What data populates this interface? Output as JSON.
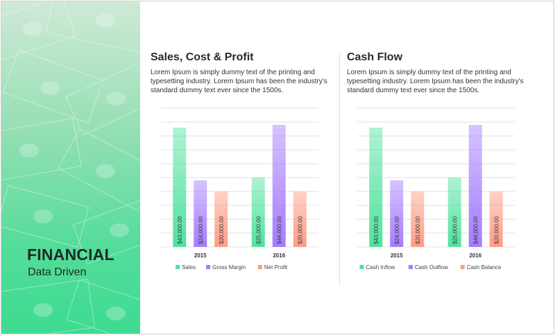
{
  "sidebar": {
    "title": "FINANCIAL",
    "subtitle": "Data Driven"
  },
  "colors": {
    "series_1": "#4fe39e",
    "series_2": "#a57bff",
    "series_3": "#ff9c84",
    "grid": "#e0e0e0"
  },
  "panels": [
    {
      "title": "Sales, Cost & Profit",
      "description": "Lorem Ipsum is simply dummy text of the printing and typesetting industry. Lorem Ipsum has been the industry's standard dummy text ever since the 1500s."
    },
    {
      "title": "Cash Flow",
      "description": "Lorem Ipsum is simply dummy text of the printing and typesetting industry. Lorem Ipsum has been the industry's standard dummy text ever since the 1500s."
    }
  ],
  "chart_data": [
    {
      "type": "bar",
      "title": "",
      "categories": [
        "2015",
        "2016"
      ],
      "series": [
        {
          "name": "Sales",
          "values": [
            43000,
            25000
          ],
          "labels": [
            "$43,000.00",
            "$25,000.00"
          ]
        },
        {
          "name": "Gross Margin",
          "values": [
            24000,
            44000
          ],
          "labels": [
            "$24,000.00",
            "$44,000.00"
          ]
        },
        {
          "name": "Net Profit",
          "values": [
            20000,
            20000
          ],
          "labels": [
            "$20,000.00",
            "$20,000.00"
          ]
        }
      ],
      "ylim": [
        0,
        50000
      ],
      "grid": true,
      "legend": "bottom"
    },
    {
      "type": "bar",
      "title": "",
      "categories": [
        "2015",
        "2016"
      ],
      "series": [
        {
          "name": "Cash Inflow",
          "values": [
            43000,
            25000
          ],
          "labels": [
            "$43,000.00",
            "$25,000.00"
          ]
        },
        {
          "name": "Cash Outflow",
          "values": [
            24000,
            44000
          ],
          "labels": [
            "$24,000.00",
            "$44,000.00"
          ]
        },
        {
          "name": "Cash Balance",
          "values": [
            20000,
            20000
          ],
          "labels": [
            "$20,000.00",
            "$20,000.00"
          ]
        }
      ],
      "ylim": [
        0,
        50000
      ],
      "grid": true,
      "legend": "bottom"
    }
  ]
}
